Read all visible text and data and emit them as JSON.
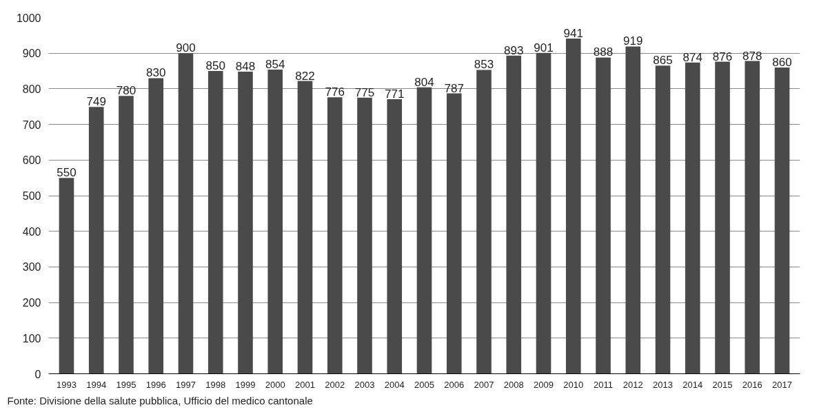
{
  "chart_data": {
    "type": "bar",
    "categories": [
      "1993",
      "1994",
      "1995",
      "1996",
      "1997",
      "1998",
      "1999",
      "2000",
      "2001",
      "2002",
      "2003",
      "2004",
      "2005",
      "2006",
      "2007",
      "2008",
      "2009",
      "2010",
      "2011",
      "2012",
      "2013",
      "2014",
      "2015",
      "2016",
      "2017"
    ],
    "values": [
      550,
      749,
      780,
      830,
      900,
      850,
      848,
      854,
      822,
      776,
      775,
      771,
      804,
      787,
      853,
      893,
      901,
      941,
      888,
      919,
      865,
      874,
      876,
      878,
      860
    ],
    "color": "#4a4a4a",
    "ylim": [
      0,
      1000
    ],
    "yticks": [
      0,
      100,
      200,
      300,
      400,
      500,
      600,
      700,
      800,
      900,
      1000
    ],
    "grid": "y",
    "data_labels": true,
    "annotations": [
      "Fonte: Divisione della salute pubblica, Ufficio del medico cantonale"
    ]
  }
}
